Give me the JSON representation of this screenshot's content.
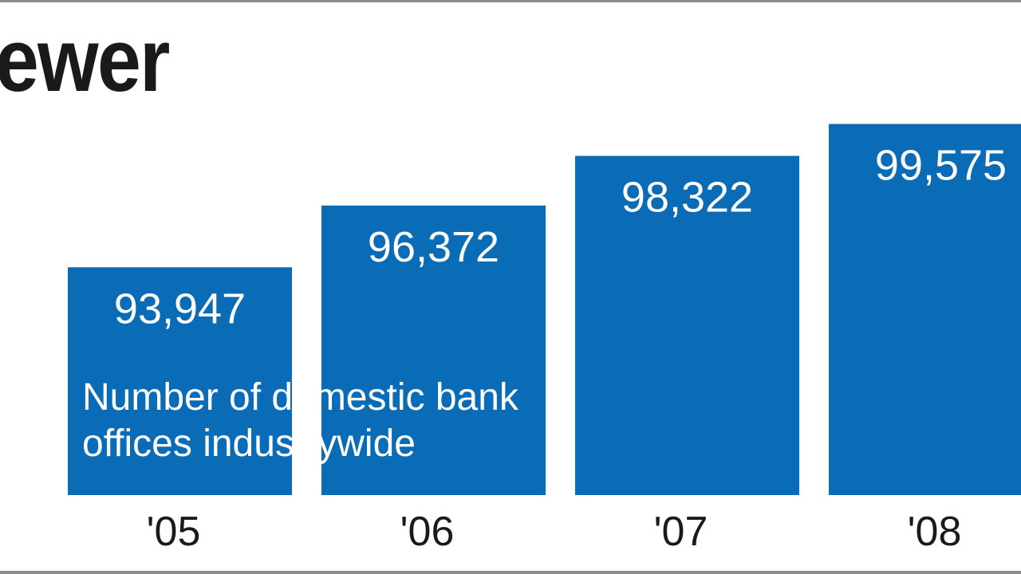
{
  "chart_data": {
    "type": "bar",
    "title": "ewer",
    "note_lines": [
      "Number of domestic bank",
      "offices industrywide"
    ],
    "categories": [
      "'05",
      "'06",
      "'07",
      "'08"
    ],
    "values": [
      93947,
      96372,
      98322,
      99575
    ],
    "value_labels": [
      "93,947",
      "96,372",
      "98,322",
      "99,575"
    ],
    "bar_color": "#0a6cb6",
    "ylim": [
      85000,
      101000
    ],
    "grid": false
  }
}
